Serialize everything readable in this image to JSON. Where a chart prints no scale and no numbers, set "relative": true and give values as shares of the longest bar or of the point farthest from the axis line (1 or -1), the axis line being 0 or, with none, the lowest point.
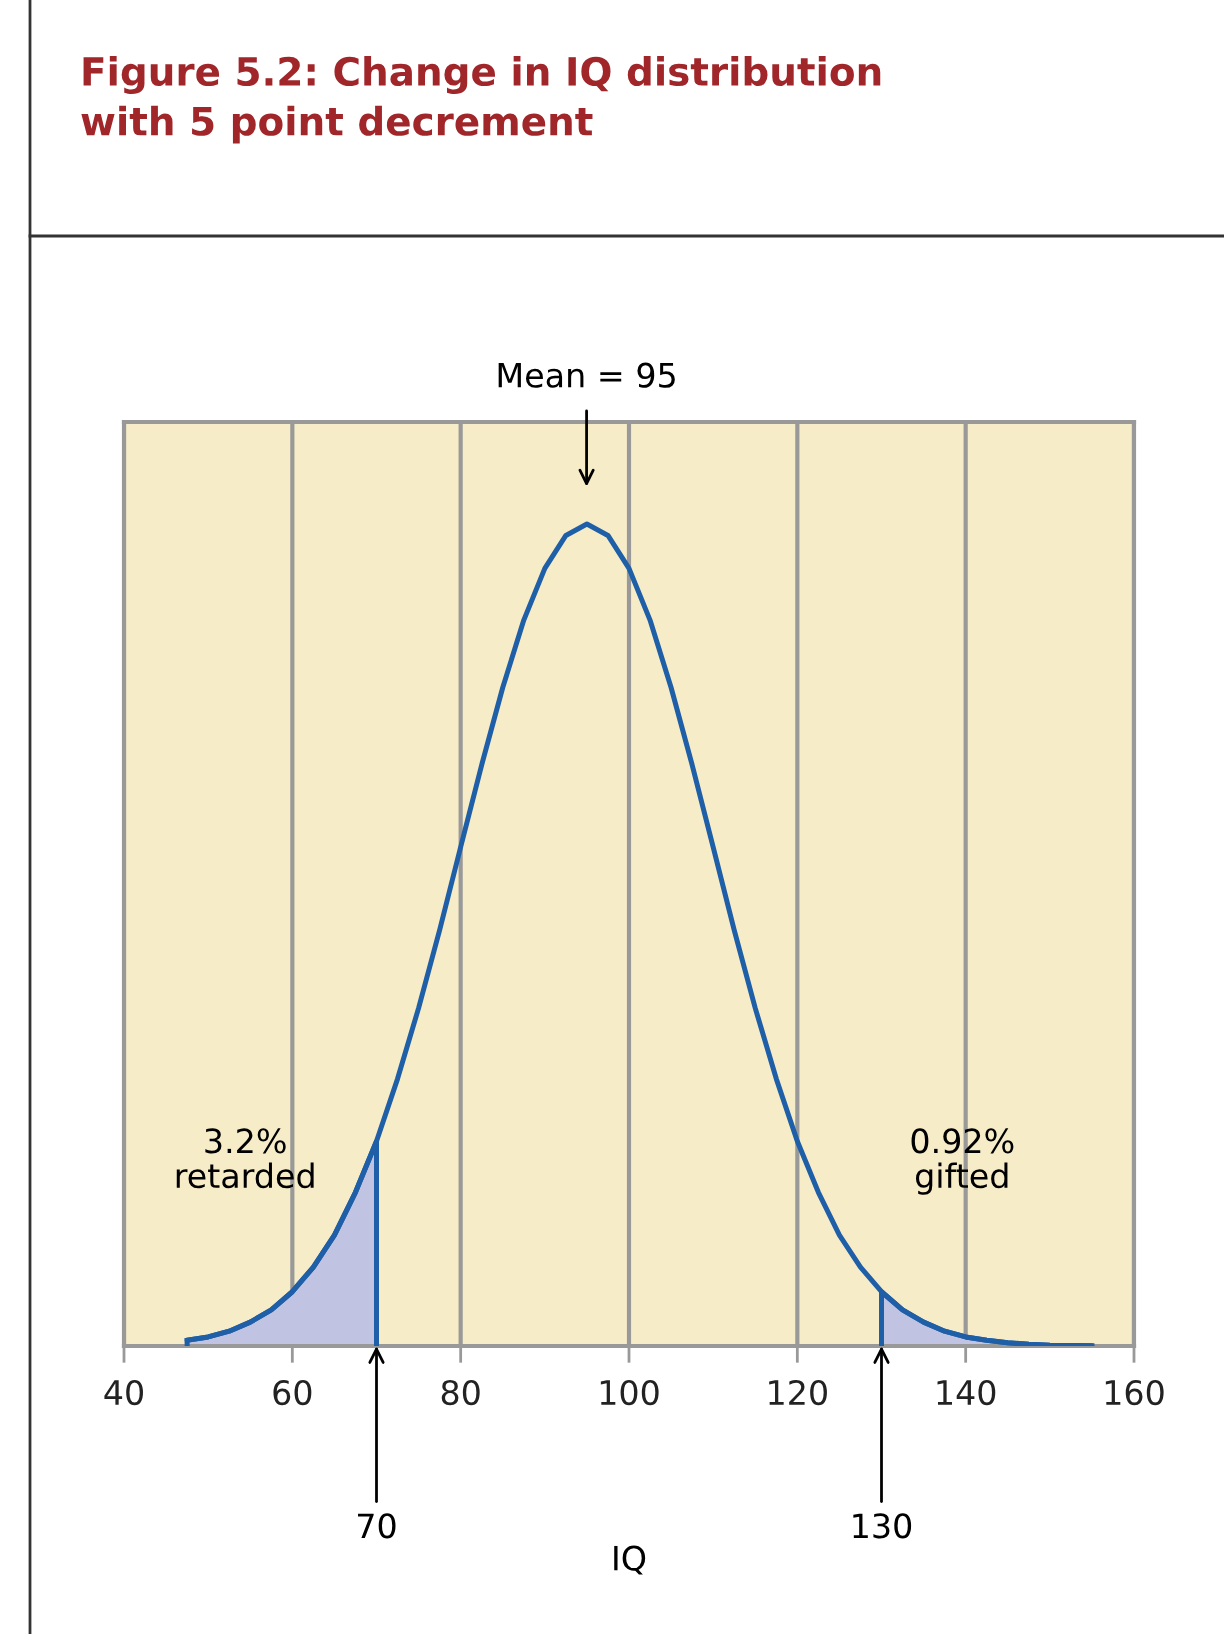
{
  "chart_data": {
    "type": "line",
    "title": "Figure 5.2: Change in IQ distribution\nwith 5 point decrement",
    "xlabel": "IQ",
    "relative": true,
    "xlim": [
      40,
      160
    ],
    "xticks": [
      40,
      60,
      80,
      100,
      120,
      140,
      160
    ],
    "grid": "x",
    "tick_labels": "x",
    "series": [
      {
        "type": "area",
        "color": "#c0c4e2",
        "x": [
          47.5,
          50,
          52.5,
          55,
          57.5,
          60,
          62.5,
          65,
          67.5,
          70
        ],
        "values": [
          0.007,
          0.011,
          0.018,
          0.029,
          0.044,
          0.066,
          0.096,
          0.135,
          0.187,
          0.249
        ]
      },
      {
        "type": "area",
        "color": "#c0c4e2",
        "x": [
          130,
          132.5,
          135,
          137.5,
          140,
          142.5,
          145,
          147.5,
          150,
          152.5,
          155
        ],
        "values": [
          0.066,
          0.044,
          0.029,
          0.018,
          0.011,
          0.007,
          0.004,
          0.002,
          0.001,
          0.0006,
          0.0003
        ]
      },
      {
        "color": "#1f5fa8",
        "x": [
          47.5,
          50,
          52.5,
          55,
          57.5,
          60,
          62.5,
          65,
          67.5,
          70,
          72.5,
          75,
          77.5,
          80,
          82.5,
          85,
          87.5,
          90,
          92.5,
          95,
          97.5,
          100,
          102.5,
          105,
          107.5,
          110,
          112.5,
          115,
          117.5,
          120,
          122.5,
          125,
          127.5,
          130,
          132.5,
          135,
          137.5,
          140,
          142.5,
          145,
          147.5,
          150,
          152.5,
          155
        ],
        "values": [
          0.007,
          0.011,
          0.018,
          0.029,
          0.044,
          0.066,
          0.096,
          0.135,
          0.187,
          0.249,
          0.325,
          0.411,
          0.506,
          0.607,
          0.707,
          0.801,
          0.883,
          0.946,
          0.986,
          1,
          0.986,
          0.946,
          0.883,
          0.801,
          0.707,
          0.607,
          0.506,
          0.411,
          0.325,
          0.249,
          0.187,
          0.135,
          0.096,
          0.066,
          0.044,
          0.029,
          0.018,
          0.011,
          0.007,
          0.004,
          0.002,
          0.001,
          0.0006,
          0.0003
        ]
      }
    ],
    "annotations": [
      "Mean = 95",
      "3.2%\nretarded",
      "0.92%\ngifted",
      {
        "text": "70",
        "x": 70,
        "y": 0
      },
      {
        "text": "130",
        "x": 130,
        "y": 0
      }
    ]
  }
}
